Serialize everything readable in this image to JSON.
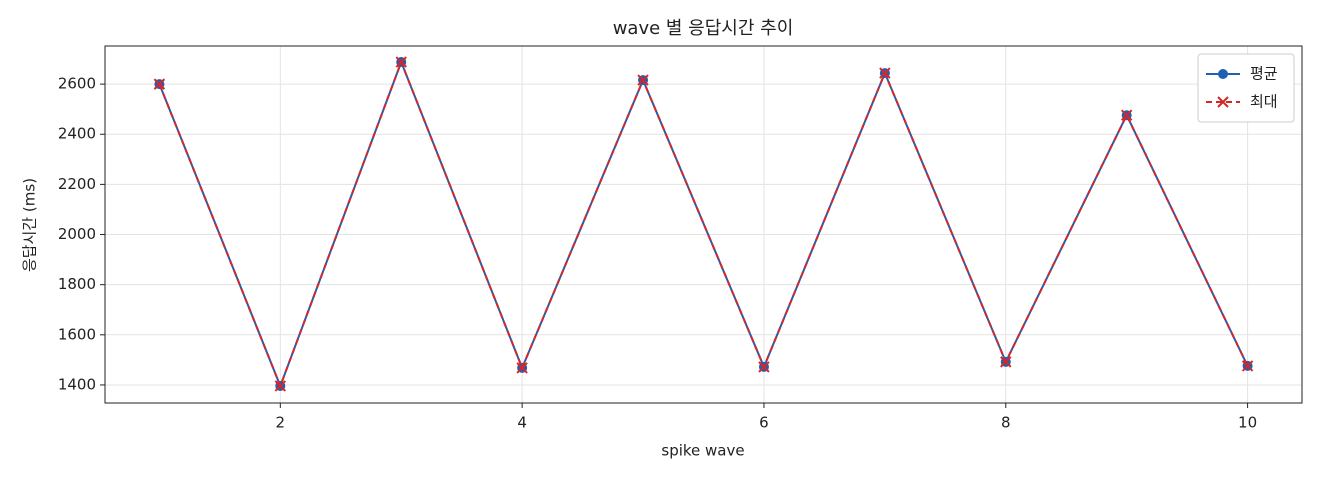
{
  "chart_data": {
    "type": "line",
    "title": "wave 별 응답시간 추이",
    "x_label": "spike wave",
    "y_label": "응답시간 (ms)",
    "x": [
      1,
      2,
      3,
      4,
      5,
      6,
      7,
      8,
      9,
      10
    ],
    "series": [
      {
        "name": "평균",
        "color": "#1f5fb4",
        "marker": "o",
        "dash": false,
        "values": [
          2600,
          1396,
          2688,
          1468,
          2616,
          1472,
          2644,
          1492,
          2476,
          1476
        ]
      },
      {
        "name": "최대",
        "color": "#d62728",
        "marker": "x",
        "dash": true,
        "values": [
          2600,
          1396,
          2688,
          1468,
          2616,
          1472,
          2644,
          1492,
          2476,
          1476
        ]
      }
    ],
    "xlim": [
      0.55,
      10.45
    ],
    "ylim": [
      1328,
      2752
    ],
    "xticks": [
      2,
      4,
      6,
      8,
      10
    ],
    "yticks": [
      1400,
      1600,
      1800,
      2000,
      2200,
      2400,
      2600
    ],
    "grid": true,
    "legend": "upper right"
  }
}
